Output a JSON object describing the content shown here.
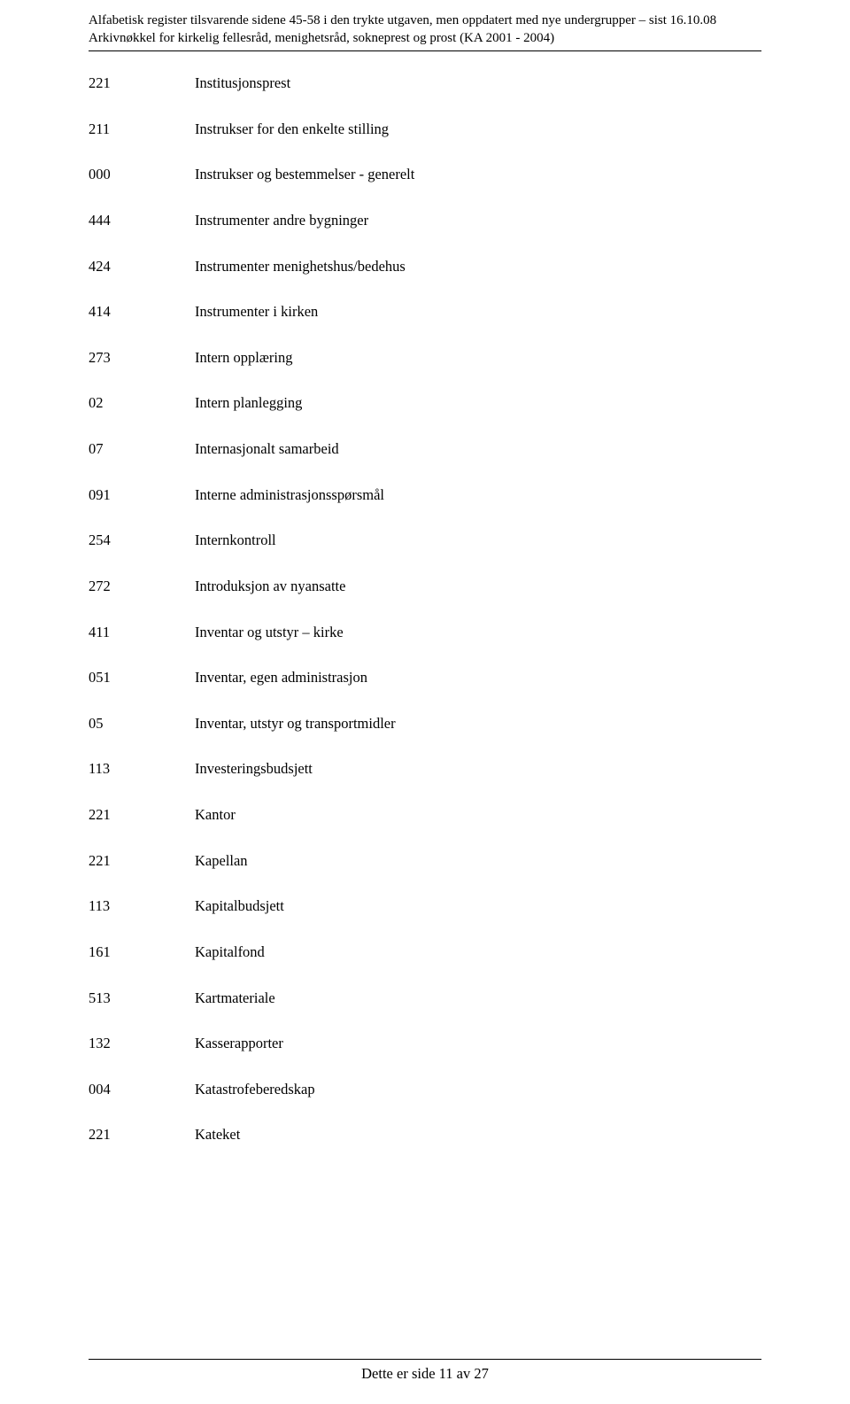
{
  "header": {
    "line1": "Alfabetisk register tilsvarende sidene 45-58 i den trykte utgaven, men oppdatert med nye undergrupper – sist 16.10.08",
    "line2": "Arkivnøkkel for kirkelig fellesråd, menighetsråd, sokneprest og prost (KA 2001 - 2004)"
  },
  "entries": [
    {
      "code": "221",
      "label": "Institusjonsprest"
    },
    {
      "code": "211",
      "label": "Instrukser for den enkelte stilling"
    },
    {
      "code": "000",
      "label": "Instrukser og bestemmelser - generelt"
    },
    {
      "code": "444",
      "label": "Instrumenter andre bygninger"
    },
    {
      "code": "424",
      "label": "Instrumenter menighetshus/bedehus"
    },
    {
      "code": "414",
      "label": "Instrumenter i kirken"
    },
    {
      "code": "273",
      "label": "Intern opplæring"
    },
    {
      "code": "02",
      "label": "Intern planlegging"
    },
    {
      "code": "07",
      "label": "Internasjonalt samarbeid"
    },
    {
      "code": "091",
      "label": "Interne administrasjonsspørsmål"
    },
    {
      "code": "254",
      "label": "Internkontroll"
    },
    {
      "code": "272",
      "label": "Introduksjon av nyansatte"
    },
    {
      "code": "411",
      "label": "Inventar og utstyr – kirke"
    },
    {
      "code": "051",
      "label": "Inventar, egen administrasjon"
    },
    {
      "code": "05",
      "label": "Inventar, utstyr og transportmidler"
    },
    {
      "code": "113",
      "label": "Investeringsbudsjett"
    },
    {
      "code": "221",
      "label": "Kantor"
    },
    {
      "code": "221",
      "label": "Kapellan"
    },
    {
      "code": "113",
      "label": "Kapitalbudsjett"
    },
    {
      "code": "161",
      "label": "Kapitalfond"
    },
    {
      "code": "513",
      "label": "Kartmateriale"
    },
    {
      "code": "132",
      "label": "Kasserapporter"
    },
    {
      "code": "004",
      "label": "Katastrofeberedskap"
    },
    {
      "code": "221",
      "label": "Kateket"
    }
  ],
  "footer": {
    "text": "Dette er side 11 av 27"
  }
}
